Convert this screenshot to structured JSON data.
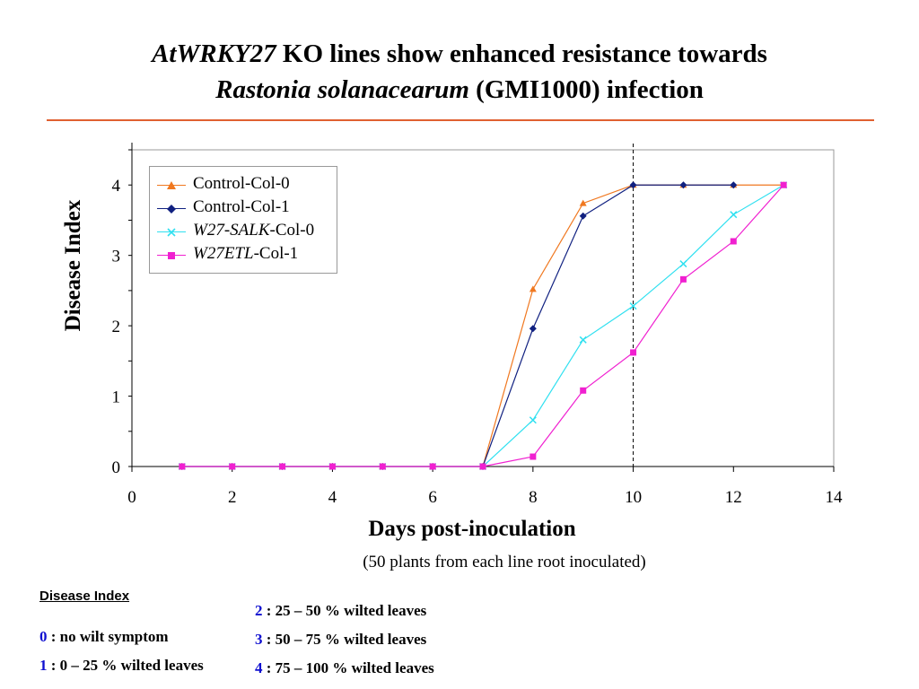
{
  "slide": {
    "title_line1_italic": "AtWRKY27",
    "title_line1_rest": " KO lines show enhanced resistance towards",
    "title_line2_italic": "Rastonia solanacearum",
    "title_line2_rest": "  (GMI1000) infection",
    "rule_color": "#e06030",
    "x_note": "(50 plants from each line root inoculated)"
  },
  "chart_data": {
    "type": "line",
    "title": "",
    "xlabel": "Days post-inoculation",
    "ylabel": "Disease Index",
    "xlim": [
      0,
      14
    ],
    "ylim": [
      0,
      4.5
    ],
    "xticks": [
      0,
      2,
      4,
      6,
      8,
      10,
      12,
      14
    ],
    "yticks": [
      0,
      1,
      2,
      3,
      4
    ],
    "grid": false,
    "legend_position": "top-left",
    "reference_line": {
      "x": 10,
      "style": "dashed"
    },
    "x": [
      1,
      2,
      3,
      4,
      5,
      6,
      7,
      8,
      9,
      10,
      11,
      12,
      13
    ],
    "series": [
      {
        "name": "Control-Col-0",
        "color": "#f07820",
        "marker": "triangle",
        "values": [
          0,
          0,
          0,
          0,
          0,
          0,
          0,
          2.52,
          3.74,
          4.0,
          4.0,
          4.0,
          4.0
        ]
      },
      {
        "name": "Control-Col-1",
        "color": "#102080",
        "marker": "diamond",
        "x": [
          1,
          2,
          3,
          4,
          5,
          6,
          7,
          8,
          9,
          10,
          11,
          12
        ],
        "values": [
          0,
          0,
          0,
          0,
          0,
          0,
          0,
          1.96,
          3.56,
          4.0,
          4.0,
          4.0
        ]
      },
      {
        "name_italic": "W27-SALK",
        "name_rest": "-Col-0",
        "color": "#30e0f0",
        "marker": "x",
        "values": [
          0,
          0,
          0,
          0,
          0,
          0,
          0,
          0.66,
          1.8,
          2.28,
          2.88,
          3.58,
          4.0
        ]
      },
      {
        "name_italic": "W27ETL",
        "name_rest": "-Col-1",
        "color": "#f020d0",
        "marker": "square",
        "values": [
          0,
          0,
          0,
          0,
          0,
          0,
          0,
          0.14,
          1.08,
          1.62,
          2.66,
          3.2,
          4.0
        ]
      }
    ]
  },
  "key": {
    "title": "Disease Index ",
    "items": [
      {
        "num": "0",
        "text": " : no wilt symptom"
      },
      {
        "num": "1",
        "text": " : 0 – 25 % wilted leaves"
      },
      {
        "num": "2",
        "text": " : 25 – 50 % wilted leaves"
      },
      {
        "num": "3",
        "text": " : 50 – 75 % wilted leaves"
      },
      {
        "num": "4",
        "text": " : 75 – 100 % wilted leaves"
      }
    ]
  }
}
